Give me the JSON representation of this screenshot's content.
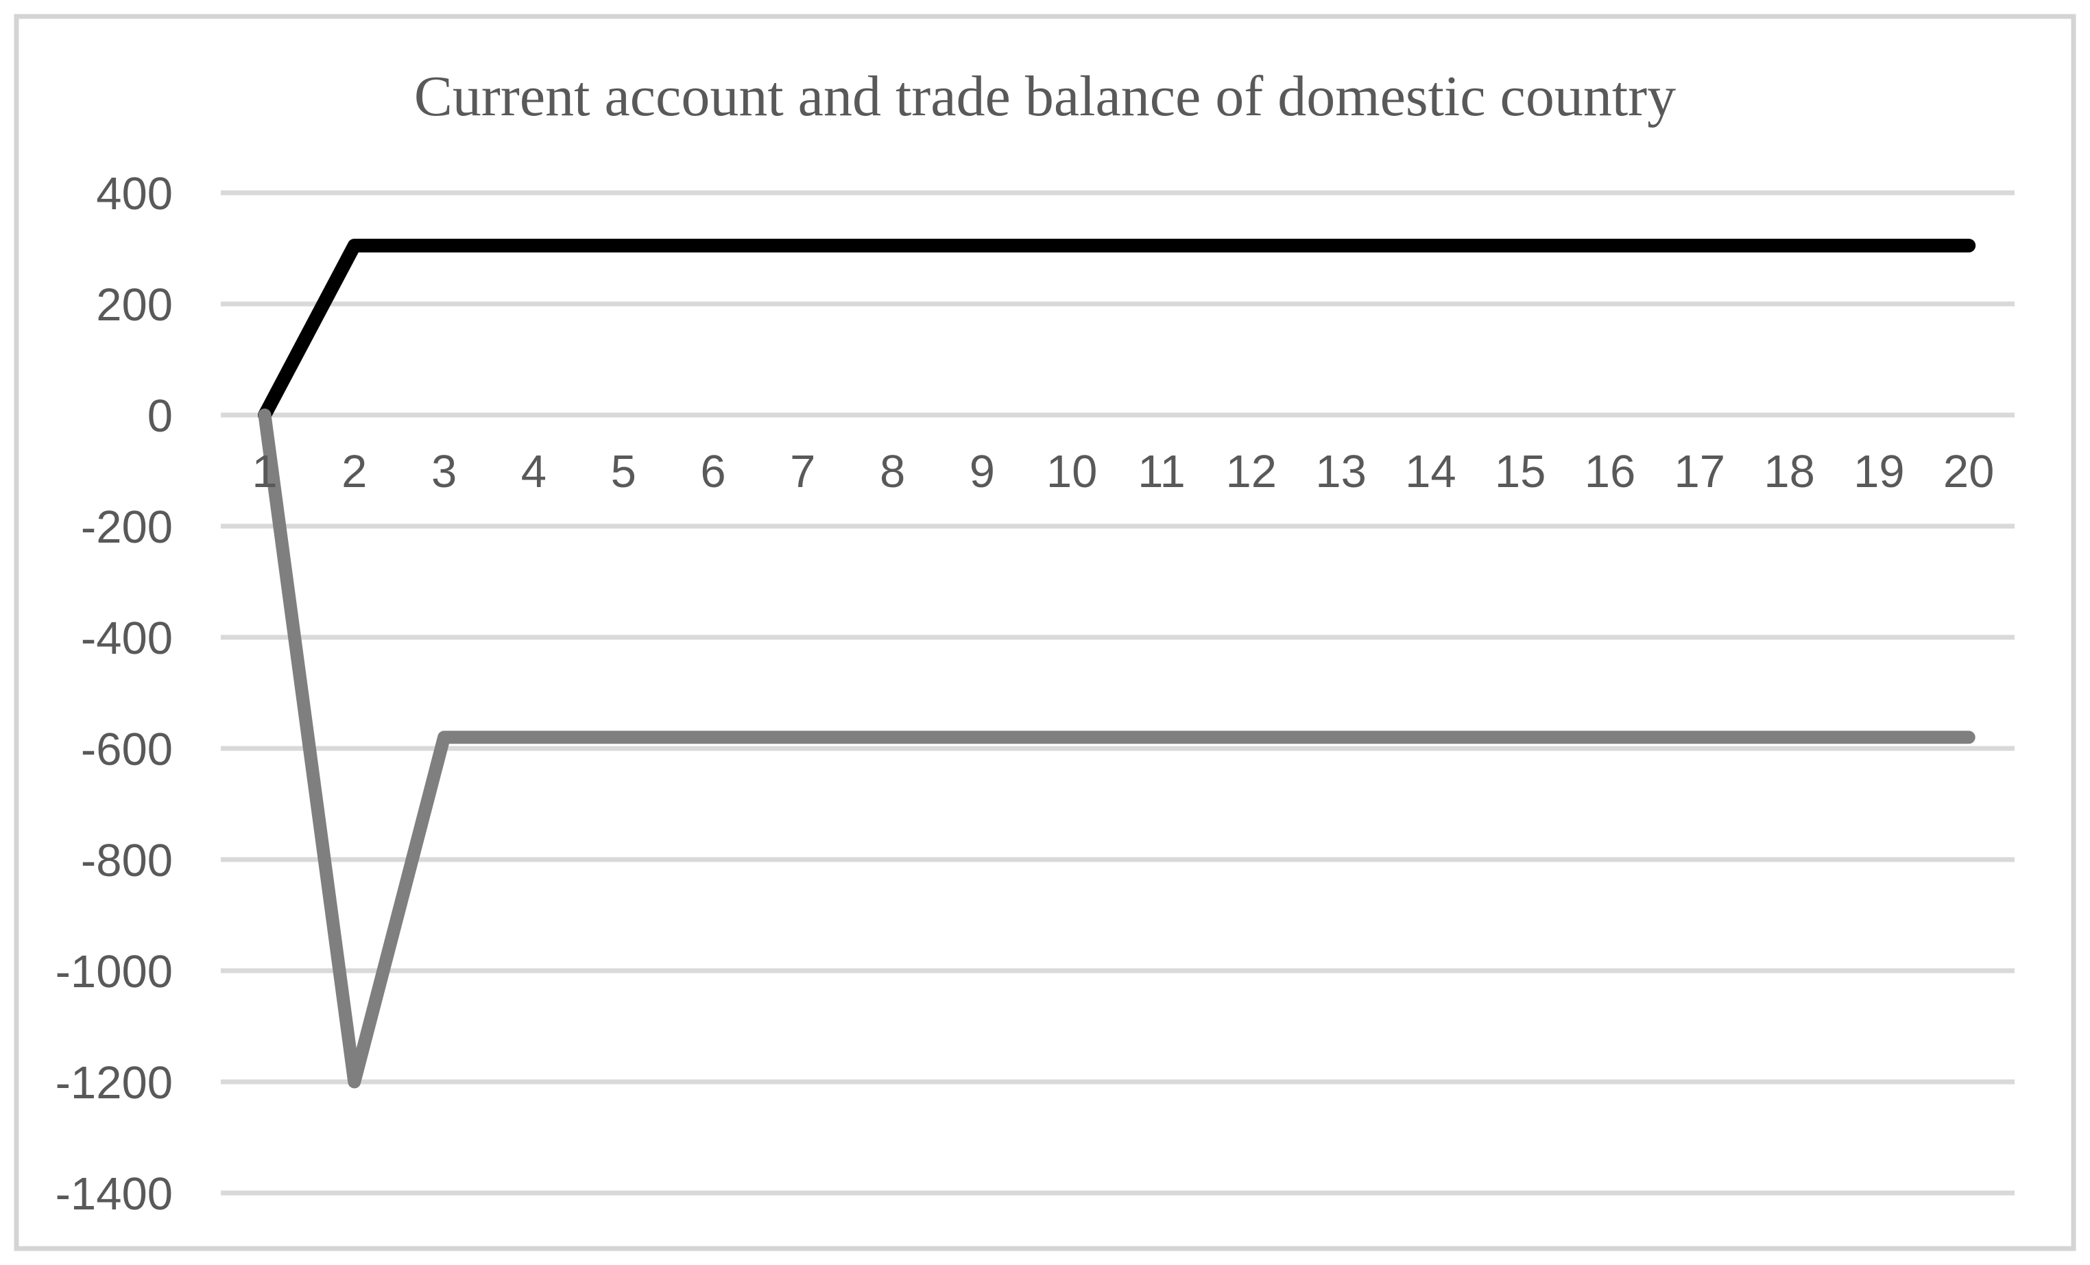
{
  "chart_data": {
    "type": "line",
    "title": "Current account and trade balance of domestic country",
    "xlabel": "",
    "ylabel": "",
    "x_categories": [
      "1",
      "2",
      "3",
      "4",
      "5",
      "6",
      "7",
      "8",
      "9",
      "10",
      "11",
      "12",
      "13",
      "14",
      "15",
      "16",
      "17",
      "18",
      "19",
      "20"
    ],
    "series": [
      {
        "name": "black line (trade balance)",
        "color": "#000000",
        "stroke_width": 20,
        "values": [
          0,
          305,
          305,
          305,
          305,
          305,
          305,
          305,
          305,
          305,
          305,
          305,
          305,
          305,
          305,
          305,
          305,
          305,
          305,
          305
        ]
      },
      {
        "name": "gray line (current account)",
        "color": "#7f7f7f",
        "stroke_width": 19,
        "values": [
          0,
          -1200,
          -580,
          -580,
          -580,
          -580,
          -580,
          -580,
          -580,
          -580,
          -580,
          -580,
          -580,
          -580,
          -580,
          -580,
          -580,
          -580,
          -580,
          -580
        ]
      }
    ],
    "y_ticks": [
      400,
      200,
      0,
      -200,
      -400,
      -600,
      -800,
      -1000,
      -1200,
      -1400
    ],
    "ylim": [
      -1400,
      400
    ],
    "grid": "horizontal-only",
    "legend": "none",
    "colors": {
      "gridline": "#d9d9d9",
      "tick_label": "#595959",
      "title": "#595959",
      "figure_border": "#d4d4d4",
      "background": "#ffffff"
    }
  }
}
